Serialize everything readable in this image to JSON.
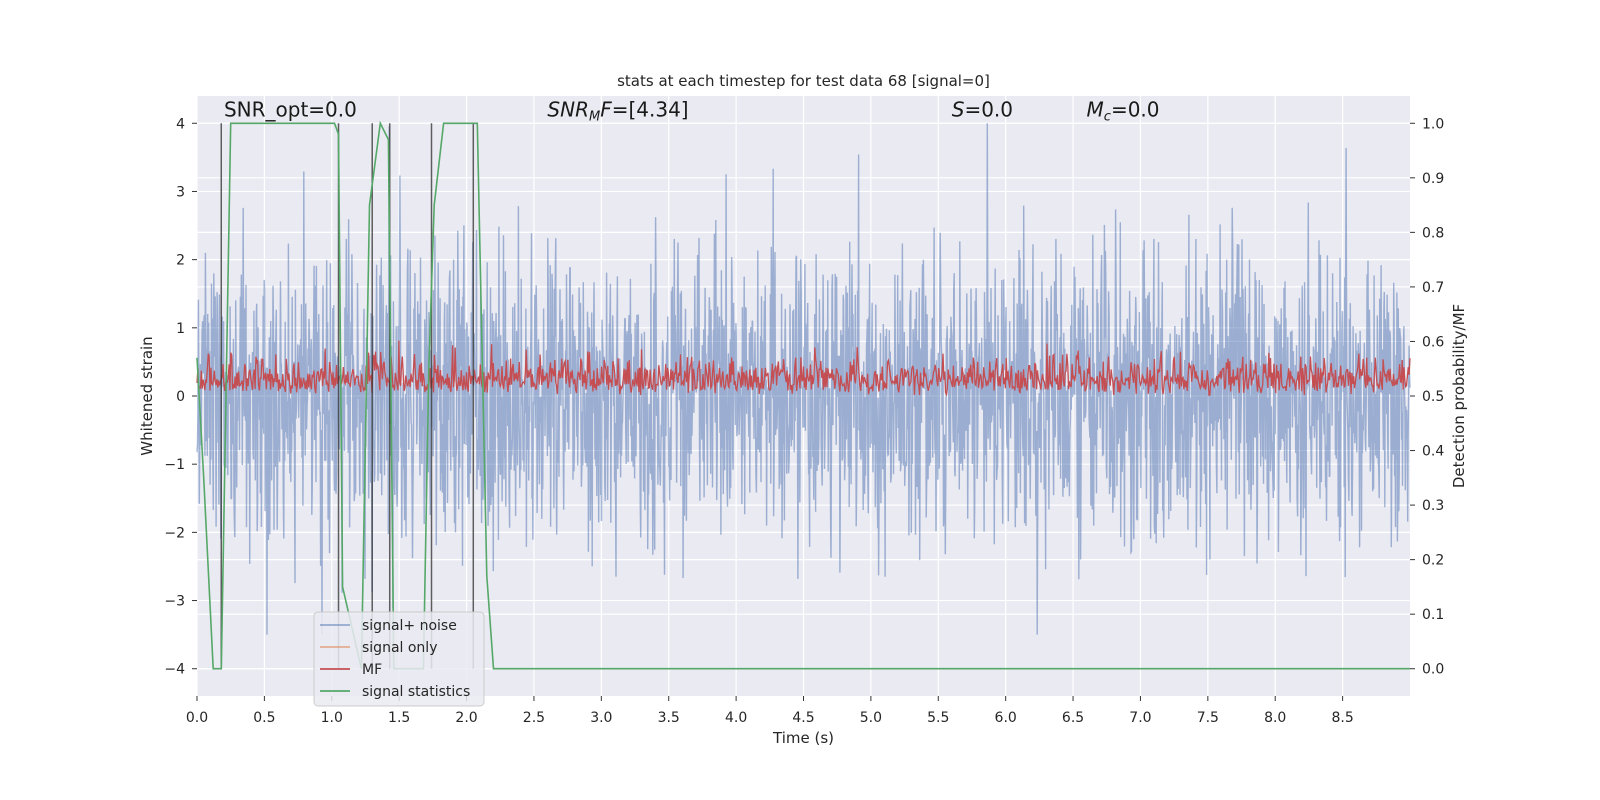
{
  "chart_data": {
    "type": "line",
    "title": "stats at each timestep for test data 68 [signal=0]",
    "xlabel": "Time (s)",
    "ylabel_left": "Whitened strain",
    "ylabel_right": "Detection probability/MF",
    "xlim": [
      0.0,
      9.0
    ],
    "ylim_left": [
      -4.4,
      4.4
    ],
    "ylim_right": [
      -0.05,
      1.05
    ],
    "x_ticks": [
      "0.0",
      "0.5",
      "1.0",
      "1.5",
      "2.0",
      "2.5",
      "3.0",
      "3.5",
      "4.0",
      "4.5",
      "5.0",
      "5.5",
      "6.0",
      "6.5",
      "7.0",
      "7.5",
      "8.0",
      "8.5"
    ],
    "y_ticks_left": [
      "−4",
      "−3",
      "−2",
      "−1",
      "0",
      "1",
      "2",
      "3",
      "4"
    ],
    "y_ticks_right": [
      "0.0",
      "0.1",
      "0.2",
      "0.3",
      "0.4",
      "0.5",
      "0.6",
      "0.7",
      "0.8",
      "0.9",
      "1.0"
    ],
    "grid": true,
    "legend_position": "lower-left",
    "annotations": [
      {
        "id": "snr-opt",
        "text": "SNR_opt=0.0",
        "x": 0.2,
        "y": 4.1
      },
      {
        "id": "snr-mf",
        "text": "SNR_MF=[4.34]",
        "x": 2.6,
        "y": 4.1
      },
      {
        "id": "s-val",
        "text": "S=0.0",
        "x": 5.6,
        "y": 4.1
      },
      {
        "id": "mc-val",
        "text": "M_c=0.0",
        "x": 6.6,
        "y": 4.1
      }
    ],
    "vertical_markers_x": [
      0.18,
      1.05,
      1.3,
      1.43,
      1.74,
      2.05
    ],
    "series": [
      {
        "name": "signal+ noise",
        "axis": "left",
        "color": "#4c72b0",
        "description": "whitened noise, amplitude roughly -3.4 to 4.0, no signal present"
      },
      {
        "name": "signal only",
        "axis": "left",
        "color": "#dd8452",
        "values_note": "zero everywhere"
      },
      {
        "name": "MF",
        "axis": "right",
        "color": "#c44e52",
        "description": "matched filter output fluctuating between ~0.5 and ~0.62"
      },
      {
        "name": "signal statistics",
        "axis": "right",
        "color": "#55a868",
        "x": [
          0.0,
          0.05,
          0.12,
          0.18,
          0.25,
          1.02,
          1.05,
          1.08,
          1.22,
          1.28,
          1.36,
          1.42,
          1.46,
          1.5,
          1.68,
          1.72,
          1.76,
          1.83,
          2.08,
          2.15,
          2.2,
          9.0
        ],
        "values": [
          0.57,
          0.35,
          0.0,
          0.0,
          1.0,
          1.0,
          0.98,
          0.15,
          0.0,
          0.85,
          1.0,
          0.97,
          0.0,
          0.0,
          0.0,
          0.55,
          0.85,
          1.0,
          1.0,
          0.17,
          0.0,
          0.0
        ]
      }
    ]
  }
}
